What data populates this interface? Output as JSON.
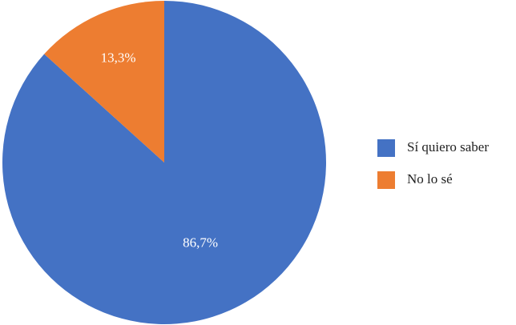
{
  "chart_data": {
    "type": "pie",
    "categories": [
      "Sí quiero saber",
      "No lo sé"
    ],
    "values": [
      86.7,
      13.3
    ],
    "value_labels": [
      "86,7%",
      "13,3%"
    ],
    "colors": [
      "#4472c4",
      "#ed7d31"
    ]
  }
}
